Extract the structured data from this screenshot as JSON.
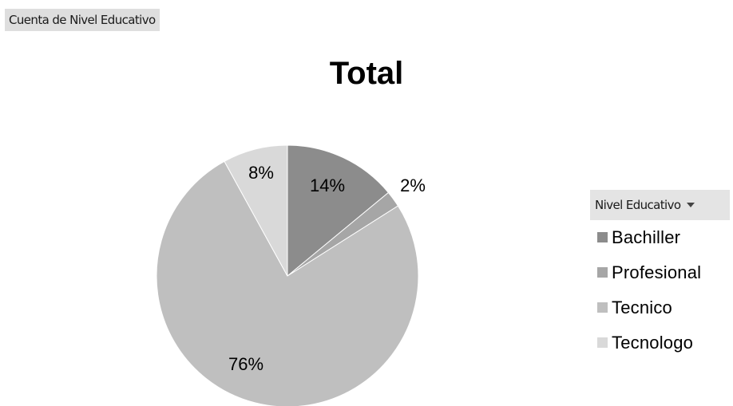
{
  "field_button_label": "Cuenta de Nivel Educativo",
  "legend": {
    "header": "Nivel Educativo"
  },
  "chart_data": {
    "type": "pie",
    "title": "Total",
    "categories": [
      "Bachiller",
      "Profesional",
      "Tecnico",
      "Tecnologo"
    ],
    "values": [
      14,
      2,
      76,
      8
    ],
    "data_labels": [
      "14%",
      "2%",
      "76%",
      "8%"
    ],
    "colors": [
      "#8c8c8c",
      "#a6a6a6",
      "#bfbfbf",
      "#d9d9d9"
    ],
    "legend_position": "right"
  }
}
